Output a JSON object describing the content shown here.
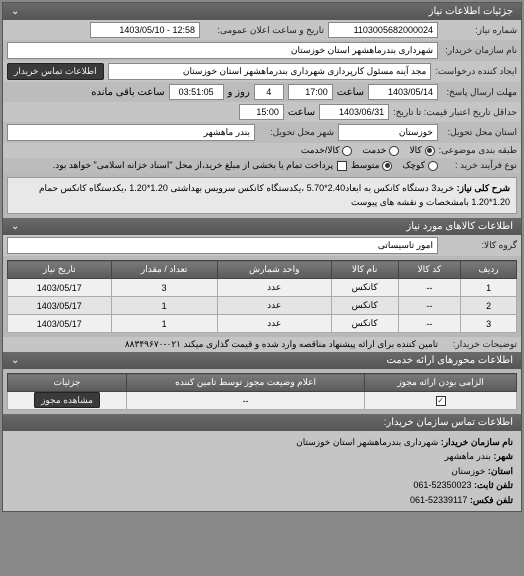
{
  "header": {
    "title": "جزئیات اطلاعات نیاز"
  },
  "form": {
    "req_no_label": "شماره نیاز:",
    "req_no": "1103005682000024",
    "announce_label": "تاریخ و ساعت اعلان عمومی:",
    "announce": "12:58 - 1403/05/10",
    "buyer_name_label": "نام سازمان خریدار:",
    "buyer_name": "شهرداری بندرماهشهر استان خوزستان",
    "requester_label": "ایجاد کننده درخواست:",
    "requester": "مجد آینه مسئول کارپردازی شهرداری بندرماهشهر استان خوزستان",
    "contact_btn": "اطلاعات تماس خریدار",
    "deadline_label": "مهلت ارسال پاسخ:",
    "deadline_date_label": "تاریخ:",
    "deadline_date": "1403/05/14",
    "deadline_time_label": "ساعت",
    "deadline_time": "17:00",
    "remaining_days": "4",
    "remaining_days_label": "روز و",
    "remaining_hours": "03:51:05",
    "remaining_label": "ساعت باقی مانده",
    "validity_label": "حداقل تاریخ اعتبار قیمت: تا تاریخ:",
    "validity_date": "1403/06/31",
    "validity_time_label": "ساعت",
    "validity_time": "15:00",
    "province_label": "استان محل تحویل:",
    "province": "خوزستان",
    "city_label": "شهر محل تحویل:",
    "city": "بندر ماهشهر",
    "budget_label": "طبقه بندی موضوعی:",
    "budget_opts": {
      "goods": "کالا",
      "service": "خدمت",
      "both": "کالا/خدمت"
    },
    "process_label": "نوع فرآیند خرید :",
    "process_opts": {
      "small": "کوچک",
      "medium": "متوسط"
    },
    "process_note": "پرداخت تمام یا بخشی از مبلغ خرید،از محل \"اسناد خزانه اسلامی\" خواهد بود.",
    "desc_label": "شرح کلی نیاز:",
    "desc": "خرید3 دستگاه کانکس به ابعاد2.40*5.70 ،یکدستگاه کانکس سرویس بهداشتی 1.20*1.20 ،یکدستگاه کانکس حمام 1.20*1.20 بامشخصات و نقشه های پیوست",
    "goods_header": "اطلاعات کالاهای مورد نیاز",
    "goods_group_label": "گروه کالا:",
    "goods_group": "امور تاسیساتی"
  },
  "table": {
    "cols": [
      "ردیف",
      "کد کالا",
      "نام کالا",
      "واحد شمارش",
      "تعداد / مقدار",
      "تاریخ نیاز"
    ],
    "rows": [
      [
        "1",
        "--",
        "کانکس",
        "عدد",
        "3",
        "1403/05/17"
      ],
      [
        "2",
        "--",
        "کانکس",
        "عدد",
        "1",
        "1403/05/17"
      ],
      [
        "3",
        "--",
        "کانکس",
        "عدد",
        "1",
        "1403/05/17"
      ]
    ]
  },
  "buyer_notes_label": "توضیحات خریدار:",
  "buyer_notes": "تامین کننده برای ارائه پیشنهاد مناقصه وارد شده و قیمت گذاری میکند ۰۲۱-۸۸۳۴۹۶۷۰",
  "axes_header": "اطلاعات محورهای ارائه خدمت",
  "provider": {
    "cols": [
      "الزامی بودن ارائه مجوز",
      "اعلام وضیعت مجوز توسط تامین کننده",
      "جزئیات"
    ],
    "mandatory_checked": true,
    "status": "--",
    "view_btn": "مشاهده مجوز"
  },
  "contact": {
    "header": "اطلاعات تماس سازمان خریدار:",
    "org_label": "نام سازمان خریدار:",
    "org": "شهرداری بندرماهشهر استان خوزستان",
    "city_label": "شهر:",
    "city": "بندر ماهشهر",
    "province_label": "استان:",
    "province": "خوزستان",
    "phone_label": "تلفن ثابت:",
    "phone": "52350023-061",
    "fax_label": "تلفن فکس:",
    "fax": "52339117-061"
  }
}
